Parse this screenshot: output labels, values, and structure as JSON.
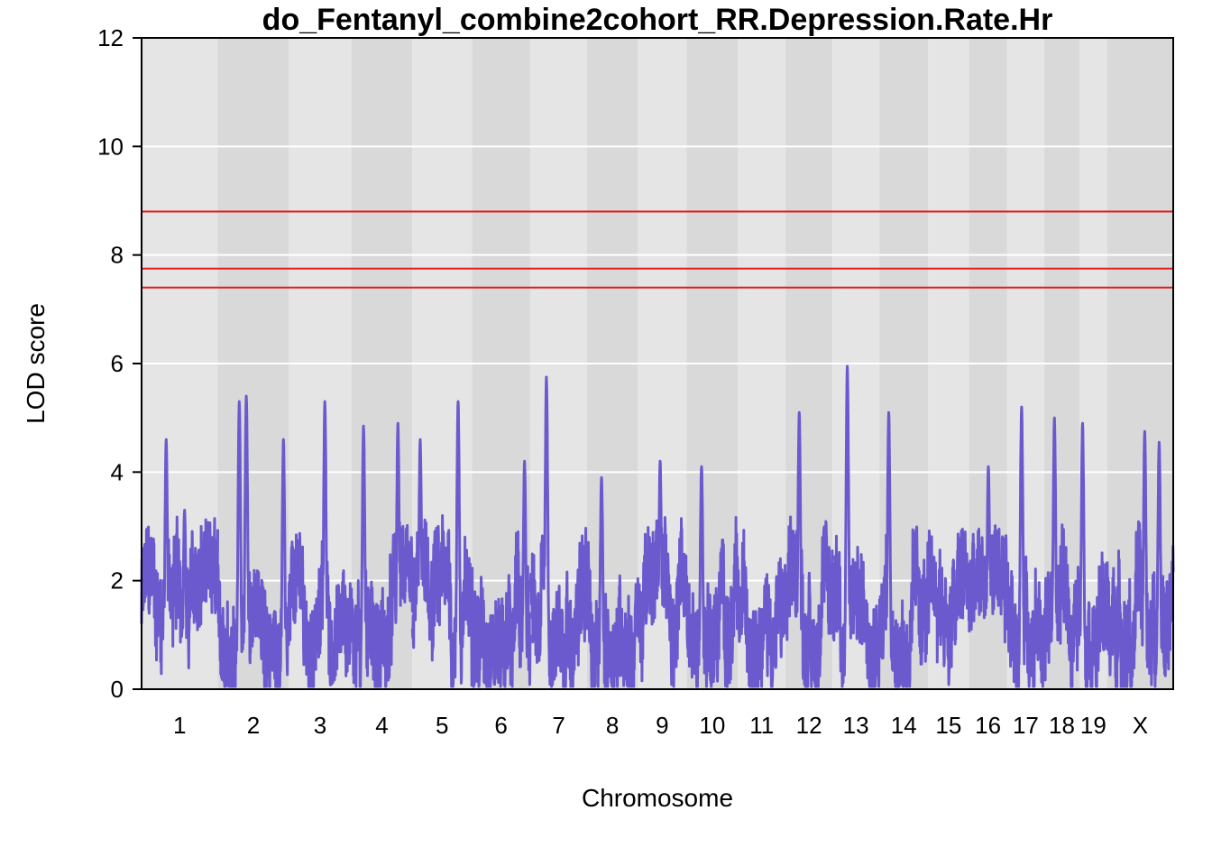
{
  "chart_data": {
    "type": "line",
    "title": "do_Fentanyl_combine2cohort_RR.Depression.Rate.Hr",
    "xlabel": "Chromosome",
    "ylabel": "LOD score",
    "ylim": [
      0,
      12
    ],
    "yticks": [
      0,
      2,
      4,
      6,
      8,
      10,
      12
    ],
    "grid": true,
    "chromosomes": [
      {
        "name": "1",
        "range": [
          0,
          195
        ]
      },
      {
        "name": "2",
        "range": [
          195,
          377
        ]
      },
      {
        "name": "3",
        "range": [
          377,
          537
        ]
      },
      {
        "name": "4",
        "range": [
          537,
          693
        ]
      },
      {
        "name": "5",
        "range": [
          693,
          845
        ]
      },
      {
        "name": "6",
        "range": [
          845,
          995
        ]
      },
      {
        "name": "7",
        "range": [
          995,
          1140
        ]
      },
      {
        "name": "8",
        "range": [
          1140,
          1270
        ]
      },
      {
        "name": "9",
        "range": [
          1270,
          1395
        ]
      },
      {
        "name": "10",
        "range": [
          1395,
          1526
        ]
      },
      {
        "name": "11",
        "range": [
          1526,
          1648
        ]
      },
      {
        "name": "12",
        "range": [
          1648,
          1768
        ]
      },
      {
        "name": "13",
        "range": [
          1768,
          1888
        ]
      },
      {
        "name": "14",
        "range": [
          1888,
          2013
        ]
      },
      {
        "name": "15",
        "range": [
          2013,
          2117
        ]
      },
      {
        "name": "16",
        "range": [
          2117,
          2215
        ]
      },
      {
        "name": "17",
        "range": [
          2215,
          2310
        ]
      },
      {
        "name": "18",
        "range": [
          2310,
          2400
        ]
      },
      {
        "name": "19",
        "range": [
          2400,
          2471
        ]
      },
      {
        "name": "X",
        "range": [
          2471,
          2640
        ]
      }
    ],
    "thresholds": [
      8.8,
      7.75,
      7.4
    ],
    "series": [
      {
        "color": "#6A5ACD",
        "peaks": [
          {
            "chr": "1",
            "pos": 63,
            "lod": 4.6
          },
          {
            "chr": "1",
            "pos": 110,
            "lod": 3.3
          },
          {
            "chr": "2",
            "pos": 55,
            "lod": 5.3
          },
          {
            "chr": "2",
            "pos": 73,
            "lod": 5.4
          },
          {
            "chr": "2",
            "pos": 168,
            "lod": 4.6
          },
          {
            "chr": "3",
            "pos": 92,
            "lod": 5.3
          },
          {
            "chr": "4",
            "pos": 31,
            "lod": 4.85
          },
          {
            "chr": "4",
            "pos": 119,
            "lod": 4.9
          },
          {
            "chr": "5",
            "pos": 20,
            "lod": 4.6
          },
          {
            "chr": "5",
            "pos": 117,
            "lod": 5.3
          },
          {
            "chr": "6",
            "pos": 135,
            "lod": 4.2
          },
          {
            "chr": "7",
            "pos": 41,
            "lod": 5.75
          },
          {
            "chr": "8",
            "pos": 37,
            "lod": 3.9
          },
          {
            "chr": "9",
            "pos": 57,
            "lod": 4.2
          },
          {
            "chr": "10",
            "pos": 38,
            "lod": 4.1
          },
          {
            "chr": "12",
            "pos": 35,
            "lod": 5.1
          },
          {
            "chr": "13",
            "pos": 38,
            "lod": 5.95
          },
          {
            "chr": "14",
            "pos": 24,
            "lod": 5.1
          },
          {
            "chr": "16",
            "pos": 50,
            "lod": 4.1
          },
          {
            "chr": "17",
            "pos": 37,
            "lod": 5.2
          },
          {
            "chr": "18",
            "pos": 26,
            "lod": 5.0
          },
          {
            "chr": "19",
            "pos": 8,
            "lod": 4.9
          },
          {
            "chr": "X",
            "pos": 96,
            "lod": 4.75
          },
          {
            "chr": "X",
            "pos": 133,
            "lod": 4.55
          }
        ],
        "baseline_range": [
          0.3,
          2.8
        ]
      }
    ]
  }
}
